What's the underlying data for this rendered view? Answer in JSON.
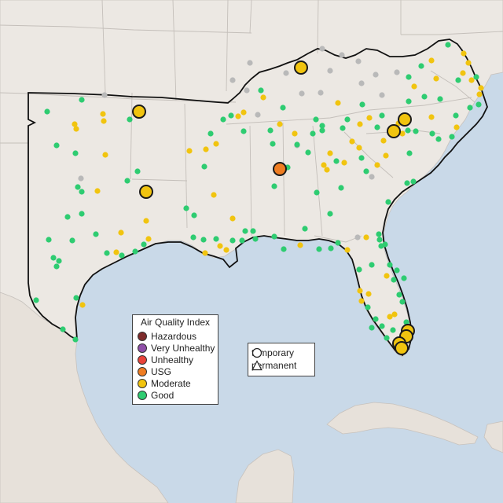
{
  "legend": {
    "title": "Air Quality Index",
    "categories": [
      {
        "label": "Hazardous",
        "color": "#7e2b2b"
      },
      {
        "label": "Very Unhealthy",
        "color": "#8f4fa8"
      },
      {
        "label": "Unhealthy",
        "color": "#e8433a"
      },
      {
        "label": "USG",
        "color": "#ef7d22"
      },
      {
        "label": "Moderate",
        "color": "#f1c40f"
      },
      {
        "label": "Good",
        "color": "#2ecc71"
      }
    ]
  },
  "monitor_types": [
    {
      "label": "temporary",
      "shape": "circle"
    },
    {
      "label": "permanent",
      "shape": "triangle"
    }
  ],
  "colors": {
    "land": "#ece8e3",
    "water": "#c9d9e8",
    "no_data": "#b9b9b9",
    "boundary": "#111111"
  }
}
